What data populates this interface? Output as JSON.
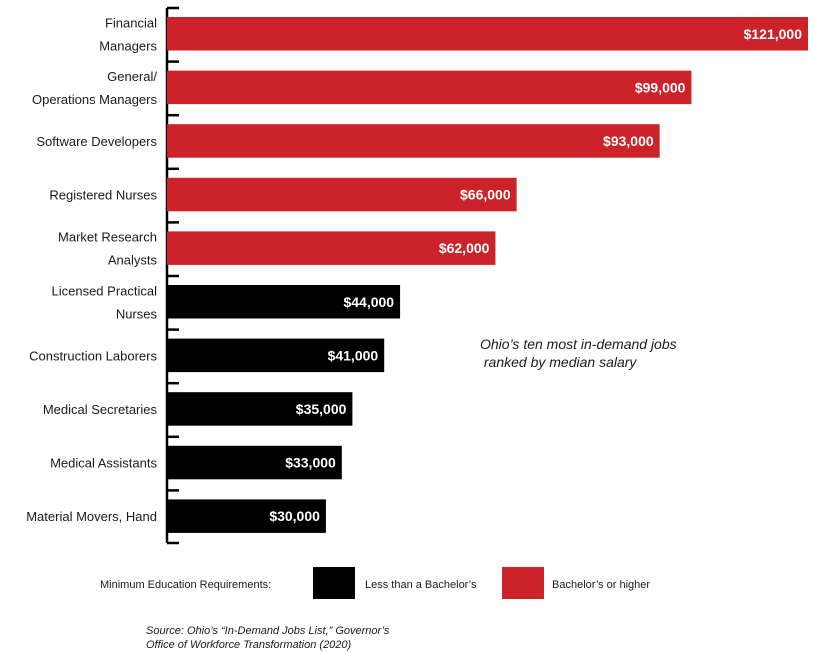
{
  "chart_data": {
    "type": "bar",
    "orientation": "horizontal",
    "categories": [
      [
        "Financial",
        "Managers"
      ],
      [
        "General/",
        "Operations Managers"
      ],
      [
        "Software Developers"
      ],
      [
        "Registered Nurses"
      ],
      [
        "Market Research",
        "Analysts"
      ],
      [
        "Licensed Practical",
        "Nurses"
      ],
      [
        "Construction Laborers"
      ],
      [
        "Medical Secretaries"
      ],
      [
        "Medical Assistants"
      ],
      [
        "Material Movers, Hand"
      ]
    ],
    "values": [
      121000,
      99000,
      93000,
      66000,
      62000,
      44000,
      41000,
      35000,
      33000,
      30000
    ],
    "value_labels": [
      "$121,000",
      "$99,000",
      "$93,000",
      "$66,000",
      "$62,000",
      "$44,000",
      "$41,000",
      "$35,000",
      "$33,000",
      "$30,000"
    ],
    "education": [
      "bachelors",
      "bachelors",
      "bachelors",
      "bachelors",
      "bachelors",
      "less",
      "less",
      "less",
      "less",
      "less"
    ],
    "xlim": [
      0,
      121000
    ],
    "grid": false
  },
  "annotation": "Ohio’s ten most in-demand jobs\n ranked by median salary",
  "legend": {
    "title": "Minimum Education Requirements:",
    "items": [
      {
        "key": "less",
        "label": "Less than a Bachelor’s",
        "color": "#000000"
      },
      {
        "key": "bachelors",
        "label": "Bachelor’s or higher",
        "color": "#cc2229"
      }
    ]
  },
  "source": {
    "line1": "Source: Ohio’s “In-Demand Jobs List,” Governor’s",
    "line2": "Office of Workforce Transformation (2020)"
  }
}
